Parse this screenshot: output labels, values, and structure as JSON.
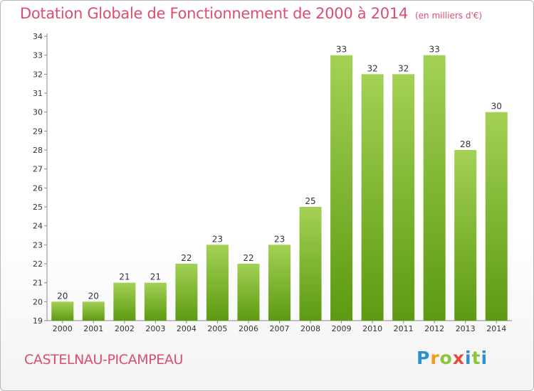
{
  "header": {
    "title": "Dotation Globale de Fonctionnement de 2000 à 2014",
    "subtitle": "(en milliers d'€)"
  },
  "footer": {
    "commune": "CASTELNAU-PICAMPEAU",
    "brand": "Proxiti"
  },
  "chart_data": {
    "type": "bar",
    "categories": [
      "2000",
      "2001",
      "2002",
      "2003",
      "2004",
      "2005",
      "2006",
      "2007",
      "2008",
      "2009",
      "2010",
      "2011",
      "2012",
      "2013",
      "2014"
    ],
    "values": [
      20,
      20,
      21,
      21,
      22,
      23,
      22,
      23,
      25,
      33,
      32,
      32,
      33,
      28,
      30
    ],
    "ylim": [
      19,
      34
    ],
    "yticks": [
      19,
      20,
      21,
      22,
      23,
      24,
      25,
      26,
      27,
      28,
      29,
      30,
      31,
      32,
      33,
      34
    ],
    "grid": false,
    "legend": "none",
    "bar_color_top": "#a3d155",
    "bar_color_bottom": "#5d9a12"
  }
}
